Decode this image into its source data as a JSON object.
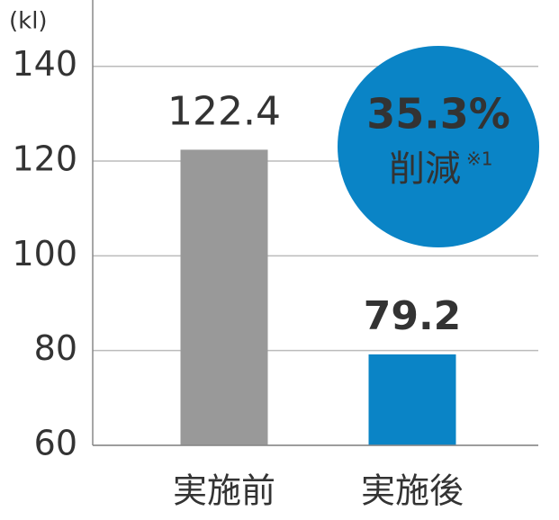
{
  "chart_data": {
    "type": "bar",
    "y_label": "(kl)",
    "categories": [
      "実施前",
      "実施後"
    ],
    "values": [
      122.4,
      79.2
    ],
    "colors": [
      "#999999",
      "#0a84c6"
    ],
    "value_label_colors": [
      "#333333",
      "#0a84c6"
    ],
    "ylim": [
      60,
      154
    ],
    "yticks": [
      60,
      80,
      100,
      120,
      140
    ],
    "grid": true,
    "annotation": {
      "value": "35.3%",
      "text": "削減",
      "note": "※1",
      "color": "#0a84c6"
    }
  }
}
